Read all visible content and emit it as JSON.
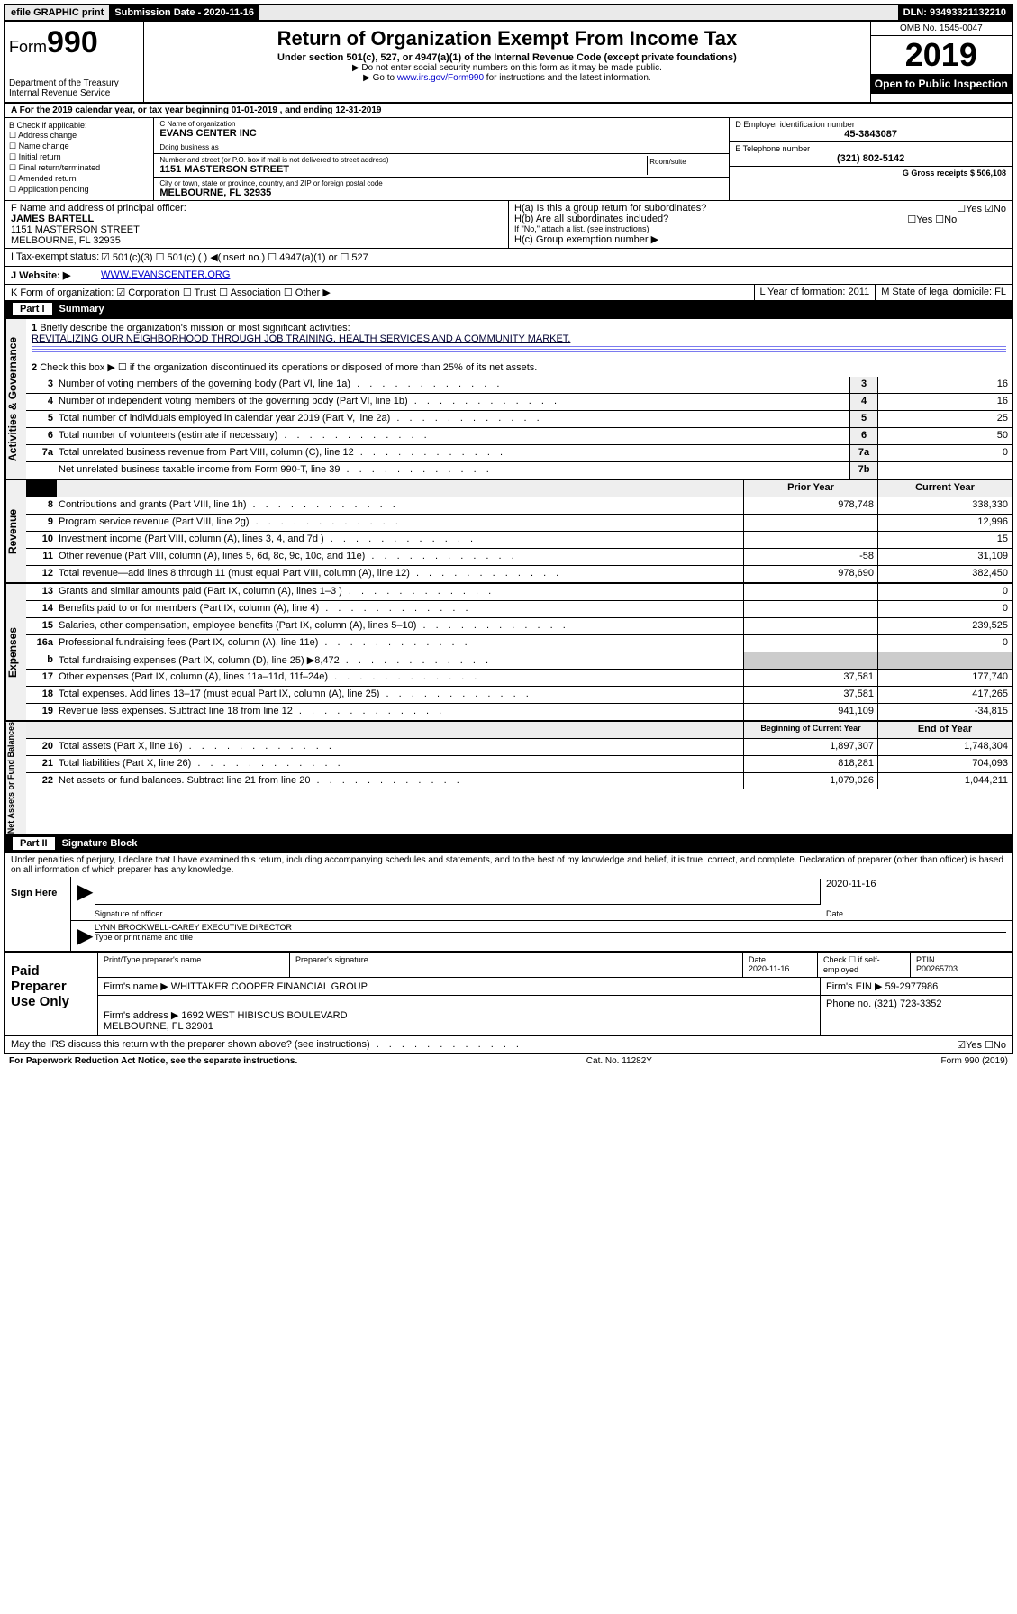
{
  "topbar": {
    "efile": "efile GRAPHIC print",
    "sub_label": "Submission Date - 2020-11-16",
    "dln": "DLN: 93493321132210"
  },
  "header": {
    "form_prefix": "Form",
    "form_num": "990",
    "dept": "Department of the Treasury\nInternal Revenue Service",
    "title": "Return of Organization Exempt From Income Tax",
    "sub": "Under section 501(c), 527, or 4947(a)(1) of the Internal Revenue Code (except private foundations)",
    "note1": "▶ Do not enter social security numbers on this form as it may be made public.",
    "note2_pre": "▶ Go to ",
    "note2_link": "www.irs.gov/Form990",
    "note2_post": " for instructions and the latest information.",
    "omb": "OMB No. 1545-0047",
    "year": "2019",
    "open": "Open to Public Inspection"
  },
  "taxyear": "A For the 2019 calendar year, or tax year beginning 01-01-2019   , and ending 12-31-2019",
  "boxB": {
    "head": "B Check if applicable:",
    "items": [
      "☐ Address change",
      "☐ Name change",
      "☐ Initial return",
      "☐ Final return/terminated",
      "☐ Amended return",
      "☐ Application pending"
    ]
  },
  "boxC": {
    "name_lbl": "C Name of organization",
    "name": "EVANS CENTER INC",
    "dba_lbl": "Doing business as",
    "dba": "",
    "addr_lbl": "Number and street (or P.O. box if mail is not delivered to street address)",
    "room_lbl": "Room/suite",
    "addr": "1151 MASTERSON STREET",
    "city_lbl": "City or town, state or province, country, and ZIP or foreign postal code",
    "city": "MELBOURNE, FL  32935"
  },
  "boxD": {
    "lbl": "D Employer identification number",
    "val": "45-3843087"
  },
  "boxE": {
    "lbl": "E Telephone number",
    "val": "(321) 802-5142"
  },
  "boxG": {
    "lbl": "G Gross receipts $ 506,108"
  },
  "boxF": {
    "lbl": "F Name and address of principal officer:",
    "name": "JAMES BARTELL",
    "addr": "1151 MASTERSON STREET\nMELBOURNE, FL  32935"
  },
  "boxH": {
    "ha": "H(a)  Is this a group return for subordinates?",
    "ha_ans": "☐Yes ☑No",
    "hb": "H(b)  Are all subordinates included?",
    "hb_ans": "☐Yes ☐No",
    "hb_note": "If \"No,\" attach a list. (see instructions)",
    "hc": "H(c)  Group exemption number ▶"
  },
  "rowI": {
    "lbl": "I   Tax-exempt status:",
    "opts": "☑ 501(c)(3)   ☐ 501(c) (  ) ◀(insert no.)   ☐ 4947(a)(1) or   ☐ 527"
  },
  "rowJ": {
    "lbl": "J   Website: ▶",
    "val": "WWW.EVANSCENTER.ORG"
  },
  "rowK": {
    "lbl": "K Form of organization:  ☑ Corporation  ☐ Trust  ☐ Association  ☐ Other ▶",
    "l": "L Year of formation: 2011",
    "m": "M State of legal domicile: FL"
  },
  "part1": {
    "num": "Part I",
    "title": "Summary"
  },
  "summary": {
    "s1_lbl": "Briefly describe the organization's mission or most significant activities:",
    "s1_val": "REVITALIZING OUR NEIGHBORHOOD THROUGH JOB TRAINING, HEALTH SERVICES AND A COMMUNITY MARKET.",
    "s2": "Check this box ▶ ☐  if the organization discontinued its operations or disposed of more than 25% of its net assets.",
    "rows_gov": [
      {
        "n": "3",
        "t": "Number of voting members of the governing body (Part VI, line 1a)",
        "bn": "3",
        "v": "16"
      },
      {
        "n": "4",
        "t": "Number of independent voting members of the governing body (Part VI, line 1b)",
        "bn": "4",
        "v": "16"
      },
      {
        "n": "5",
        "t": "Total number of individuals employed in calendar year 2019 (Part V, line 2a)",
        "bn": "5",
        "v": "25"
      },
      {
        "n": "6",
        "t": "Total number of volunteers (estimate if necessary)",
        "bn": "6",
        "v": "50"
      },
      {
        "n": "7a",
        "t": "Total unrelated business revenue from Part VIII, column (C), line 12",
        "bn": "7a",
        "v": "0"
      },
      {
        "n": "",
        "t": "Net unrelated business taxable income from Form 990-T, line 39",
        "bn": "7b",
        "v": ""
      }
    ],
    "col_head_prior": "Prior Year",
    "col_head_curr": "Current Year",
    "rows_rev": [
      {
        "n": "8",
        "t": "Contributions and grants (Part VIII, line 1h)",
        "p": "978,748",
        "c": "338,330"
      },
      {
        "n": "9",
        "t": "Program service revenue (Part VIII, line 2g)",
        "p": "",
        "c": "12,996"
      },
      {
        "n": "10",
        "t": "Investment income (Part VIII, column (A), lines 3, 4, and 7d )",
        "p": "",
        "c": "15"
      },
      {
        "n": "11",
        "t": "Other revenue (Part VIII, column (A), lines 5, 6d, 8c, 9c, 10c, and 11e)",
        "p": "-58",
        "c": "31,109"
      },
      {
        "n": "12",
        "t": "Total revenue—add lines 8 through 11 (must equal Part VIII, column (A), line 12)",
        "p": "978,690",
        "c": "382,450"
      }
    ],
    "rows_exp": [
      {
        "n": "13",
        "t": "Grants and similar amounts paid (Part IX, column (A), lines 1–3 )",
        "p": "",
        "c": "0"
      },
      {
        "n": "14",
        "t": "Benefits paid to or for members (Part IX, column (A), line 4)",
        "p": "",
        "c": "0"
      },
      {
        "n": "15",
        "t": "Salaries, other compensation, employee benefits (Part IX, column (A), lines 5–10)",
        "p": "",
        "c": "239,525"
      },
      {
        "n": "16a",
        "t": "Professional fundraising fees (Part IX, column (A), line 11e)",
        "p": "",
        "c": "0"
      },
      {
        "n": "b",
        "t": "Total fundraising expenses (Part IX, column (D), line 25) ▶8,472",
        "p": "shaded",
        "c": "shaded"
      },
      {
        "n": "17",
        "t": "Other expenses (Part IX, column (A), lines 11a–11d, 11f–24e)",
        "p": "37,581",
        "c": "177,740"
      },
      {
        "n": "18",
        "t": "Total expenses. Add lines 13–17 (must equal Part IX, column (A), line 25)",
        "p": "37,581",
        "c": "417,265"
      },
      {
        "n": "19",
        "t": "Revenue less expenses. Subtract line 18 from line 12",
        "p": "941,109",
        "c": "-34,815"
      }
    ],
    "col_head_begin": "Beginning of Current Year",
    "col_head_end": "End of Year",
    "rows_net": [
      {
        "n": "20",
        "t": "Total assets (Part X, line 16)",
        "p": "1,897,307",
        "c": "1,748,304"
      },
      {
        "n": "21",
        "t": "Total liabilities (Part X, line 26)",
        "p": "818,281",
        "c": "704,093"
      },
      {
        "n": "22",
        "t": "Net assets or fund balances. Subtract line 21 from line 20",
        "p": "1,079,026",
        "c": "1,044,211"
      }
    ],
    "side_gov": "Activities & Governance",
    "side_rev": "Revenue",
    "side_exp": "Expenses",
    "side_net": "Net Assets or Fund Balances"
  },
  "part2": {
    "num": "Part II",
    "title": "Signature Block"
  },
  "perjury": "Under penalties of perjury, I declare that I have examined this return, including accompanying schedules and statements, and to the best of my knowledge and belief, it is true, correct, and complete. Declaration of preparer (other than officer) is based on all information of which preparer has any knowledge.",
  "sign": {
    "label": "Sign Here",
    "sig_lbl": "Signature of officer",
    "date": "2020-11-16",
    "date_lbl": "Date",
    "name": "LYNN BROCKWELL-CAREY  EXECUTIVE DIRECTOR",
    "name_lbl": "Type or print name and title"
  },
  "paid": {
    "label": "Paid Preparer Use Only",
    "h1": "Print/Type preparer's name",
    "h2": "Preparer's signature",
    "h3": "Date",
    "date": "2020-11-16",
    "h4": "Check ☐ if self-employed",
    "h5": "PTIN",
    "ptin": "P00265703",
    "firm_lbl": "Firm's name     ▶",
    "firm": "WHITTAKER COOPER FINANCIAL GROUP",
    "ein_lbl": "Firm's EIN ▶",
    "ein": "59-2977986",
    "addr_lbl": "Firm's address ▶",
    "addr": "1692 WEST HIBISCUS BOULEVARD\nMELBOURNE, FL  32901",
    "phone_lbl": "Phone no.",
    "phone": "(321) 723-3352"
  },
  "discuss": {
    "q": "May the IRS discuss this return with the preparer shown above? (see instructions)",
    "a": "☑Yes   ☐No"
  },
  "footer": {
    "l": "For Paperwork Reduction Act Notice, see the separate instructions.",
    "c": "Cat. No. 11282Y",
    "r": "Form 990 (2019)"
  }
}
